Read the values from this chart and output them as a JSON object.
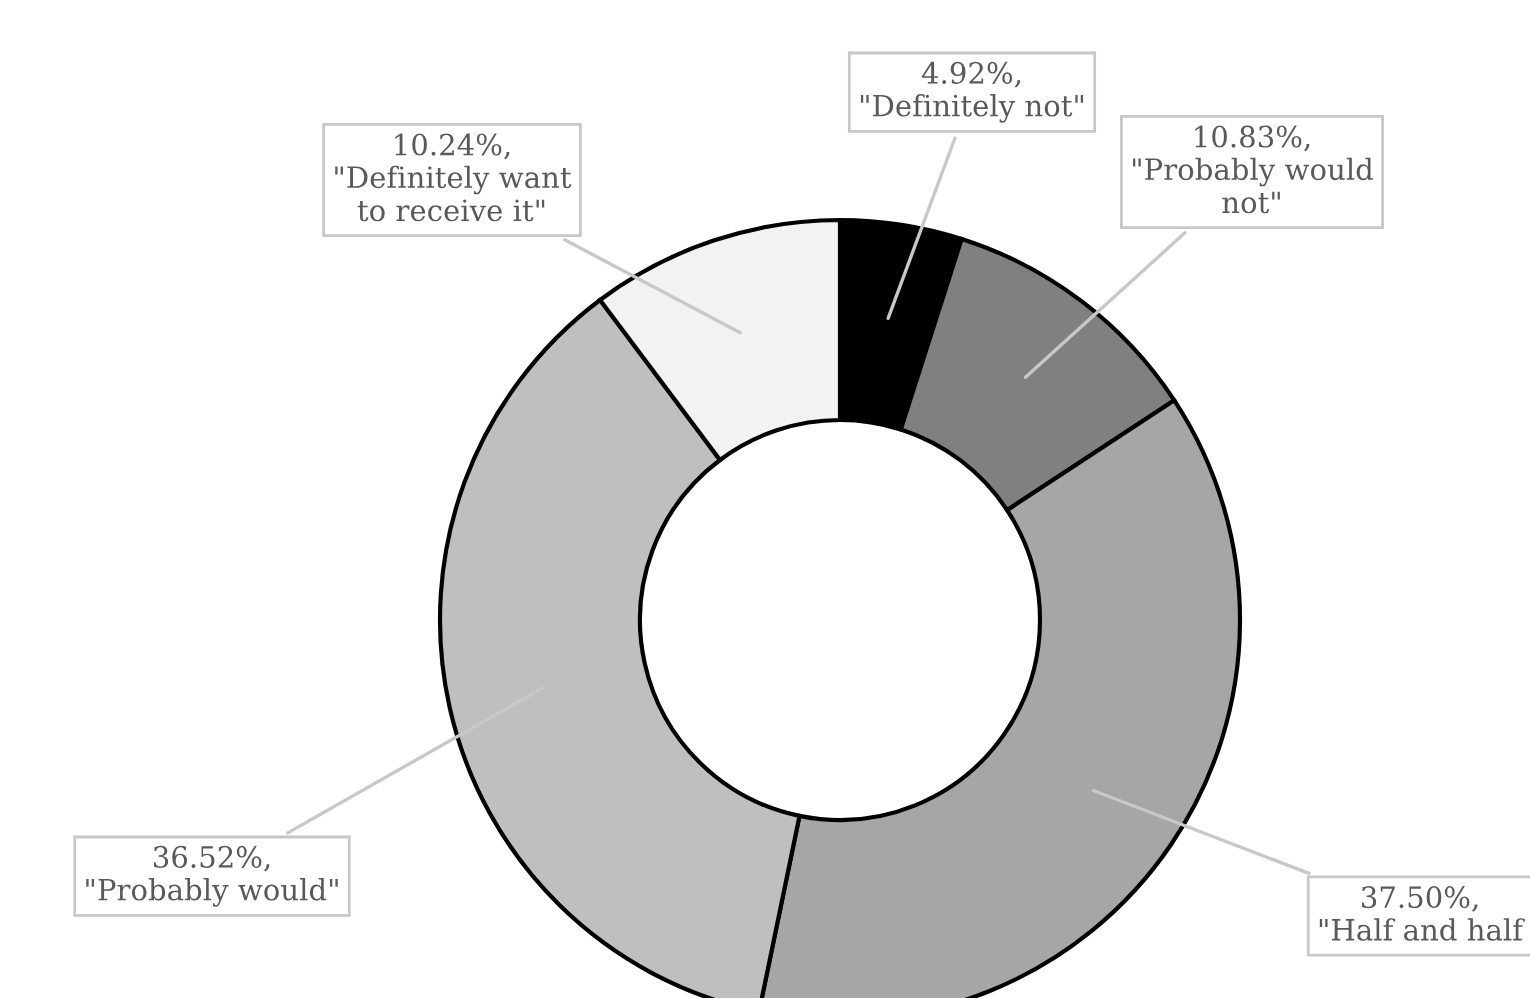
{
  "chart_data": {
    "type": "donut",
    "categories": [
      "\"Definitely not\"",
      "\"Probably would\nnot\"",
      "\"Half and half",
      "\"Probably would\"",
      "\"Definitely want\nto receive it\""
    ],
    "values": [
      4.92,
      10.83,
      37.5,
      36.52,
      10.24
    ],
    "colors": [
      "#000000",
      "#808080",
      "#a6a6a6",
      "#bfbfbf",
      "#f2f2f2"
    ],
    "value_labels": [
      "4.92%,",
      "10.83%,",
      "37.50%,",
      "36.52%,",
      "10.24%,"
    ],
    "legend": false
  }
}
